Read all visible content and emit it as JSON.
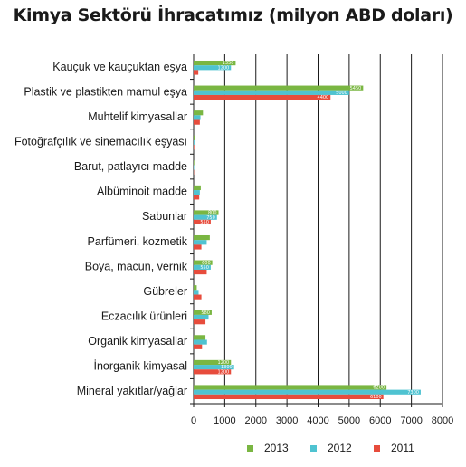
{
  "chart_data": {
    "type": "bar",
    "orientation": "horizontal",
    "title": "Kimya Sektörü İhracatımız (milyon ABD doları)",
    "xlim": [
      0,
      8000
    ],
    "xticks": [
      0,
      1000,
      2000,
      3000,
      4000,
      5000,
      6000,
      7000,
      8000
    ],
    "grid": true,
    "legend_position": "bottom",
    "categories": [
      "Kauçuk ve kauçuktan eşya",
      "Plastik ve plastikten mamul eşya",
      "Muhtelif kimyasallar",
      "Fotoğrafçılık ve sinemacılık eşyası",
      "Barut, patlayıcı madde",
      "Albüminoit madde",
      "Sabunlar",
      "Parfümeri, kozmetik",
      "Boya, macun, vernik",
      "Gübreler",
      "Eczacılık ürünleri",
      "Organik kimyasallar",
      "İnorganik kimyasal",
      "Mineral yakıtlar/yağlar"
    ],
    "series": [
      {
        "name": "2013",
        "color": "#7ab642",
        "values": [
          1350,
          5450,
          300,
          30,
          20,
          230,
          800,
          520,
          600,
          100,
          580,
          380,
          1200,
          6200
        ]
      },
      {
        "name": "2012",
        "color": "#4fc3d1",
        "values": [
          1200,
          5000,
          220,
          25,
          15,
          200,
          750,
          420,
          550,
          160,
          480,
          430,
          1300,
          7300
        ]
      },
      {
        "name": "2011",
        "color": "#e74c3c",
        "values": [
          150,
          4400,
          200,
          20,
          10,
          180,
          550,
          250,
          420,
          250,
          380,
          270,
          1200,
          6100
        ]
      }
    ]
  }
}
